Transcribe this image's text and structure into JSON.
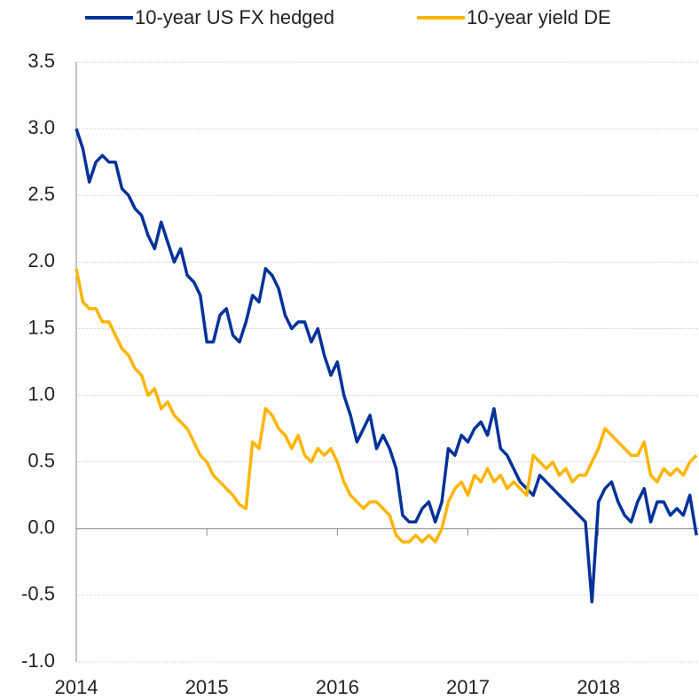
{
  "chart_data": {
    "type": "line",
    "x": [
      2014.0,
      2014.05,
      2014.1,
      2014.15,
      2014.2,
      2014.25,
      2014.3,
      2014.35,
      2014.4,
      2014.45,
      2014.5,
      2014.55,
      2014.6,
      2014.65,
      2014.7,
      2014.75,
      2014.8,
      2014.85,
      2014.9,
      2014.95,
      2015.0,
      2015.05,
      2015.1,
      2015.15,
      2015.2,
      2015.25,
      2015.3,
      2015.35,
      2015.4,
      2015.45,
      2015.5,
      2015.55,
      2015.6,
      2015.65,
      2015.7,
      2015.75,
      2015.8,
      2015.85,
      2015.9,
      2015.95,
      2016.0,
      2016.05,
      2016.1,
      2016.15,
      2016.2,
      2016.25,
      2016.3,
      2016.35,
      2016.4,
      2016.45,
      2016.5,
      2016.55,
      2016.6,
      2016.65,
      2016.7,
      2016.75,
      2016.8,
      2016.85,
      2016.9,
      2016.95,
      2017.0,
      2017.05,
      2017.1,
      2017.15,
      2017.2,
      2017.25,
      2017.3,
      2017.35,
      2017.4,
      2017.45,
      2017.5,
      2017.55,
      2017.6,
      2017.65,
      2017.7,
      2017.75,
      2017.8,
      2017.85,
      2017.9,
      2017.95,
      2018.0,
      2018.05,
      2018.1,
      2018.15,
      2018.2,
      2018.25,
      2018.3,
      2018.35,
      2018.4,
      2018.45,
      2018.5,
      2018.55,
      2018.6,
      2018.65,
      2018.7,
      2018.75
    ],
    "series": [
      {
        "name": "10-year US FX hedged",
        "color": "#003299",
        "values": [
          3.0,
          2.85,
          2.6,
          2.75,
          2.8,
          2.75,
          2.75,
          2.55,
          2.5,
          2.4,
          2.35,
          2.2,
          2.1,
          2.3,
          2.15,
          2.0,
          2.1,
          1.9,
          1.85,
          1.75,
          1.4,
          1.4,
          1.6,
          1.65,
          1.45,
          1.4,
          1.55,
          1.75,
          1.7,
          1.95,
          1.9,
          1.8,
          1.6,
          1.5,
          1.55,
          1.55,
          1.4,
          1.5,
          1.3,
          1.15,
          1.25,
          1.0,
          0.85,
          0.65,
          0.75,
          0.85,
          0.6,
          0.7,
          0.6,
          0.45,
          0.1,
          0.05,
          0.05,
          0.15,
          0.2,
          0.05,
          0.2,
          0.6,
          0.55,
          0.7,
          0.65,
          0.75,
          0.8,
          0.7,
          0.9,
          0.6,
          0.55,
          0.45,
          0.35,
          0.3,
          0.25,
          0.4,
          0.35,
          0.3,
          0.25,
          0.2,
          0.15,
          0.1,
          0.05,
          -0.55,
          0.2,
          0.3,
          0.35,
          0.2,
          0.1,
          0.05,
          0.2,
          0.3,
          0.05,
          0.2,
          0.2,
          0.1,
          0.15,
          0.1,
          0.25,
          -0.05
        ]
      },
      {
        "name": "10-year yield DE",
        "color": "#ffb400",
        "values": [
          1.95,
          1.7,
          1.65,
          1.65,
          1.55,
          1.55,
          1.45,
          1.35,
          1.3,
          1.2,
          1.15,
          1.0,
          1.05,
          0.9,
          0.95,
          0.85,
          0.8,
          0.75,
          0.65,
          0.55,
          0.5,
          0.4,
          0.35,
          0.3,
          0.25,
          0.18,
          0.15,
          0.65,
          0.6,
          0.9,
          0.85,
          0.75,
          0.7,
          0.6,
          0.7,
          0.55,
          0.5,
          0.6,
          0.55,
          0.6,
          0.5,
          0.35,
          0.25,
          0.2,
          0.15,
          0.2,
          0.2,
          0.15,
          0.1,
          -0.05,
          -0.1,
          -0.1,
          -0.05,
          -0.1,
          -0.05,
          -0.1,
          0.0,
          0.2,
          0.3,
          0.35,
          0.25,
          0.4,
          0.35,
          0.45,
          0.35,
          0.4,
          0.3,
          0.35,
          0.3,
          0.25,
          0.55,
          0.5,
          0.45,
          0.5,
          0.4,
          0.45,
          0.35,
          0.4,
          0.4,
          0.5,
          0.6,
          0.75,
          0.7,
          0.65,
          0.6,
          0.55,
          0.55,
          0.65,
          0.4,
          0.35,
          0.45,
          0.4,
          0.45,
          0.4,
          0.5,
          0.55
        ]
      }
    ],
    "xlim": [
      2014,
      2018.77
    ],
    "xticks": [
      2014,
      2015,
      2016,
      2017,
      2018
    ],
    "ylim": [
      -1,
      3.5
    ],
    "yticks": [
      {
        "value": -1,
        "label": "-1.0"
      },
      -0.5,
      {
        "value": 0,
        "label": "0.0"
      },
      0.5,
      {
        "value": 1,
        "label": "1.0"
      },
      1.5,
      {
        "value": 2,
        "label": "2.0"
      },
      2.5,
      {
        "value": 3,
        "label": "3.0"
      },
      3.5
    ],
    "grid": true
  }
}
